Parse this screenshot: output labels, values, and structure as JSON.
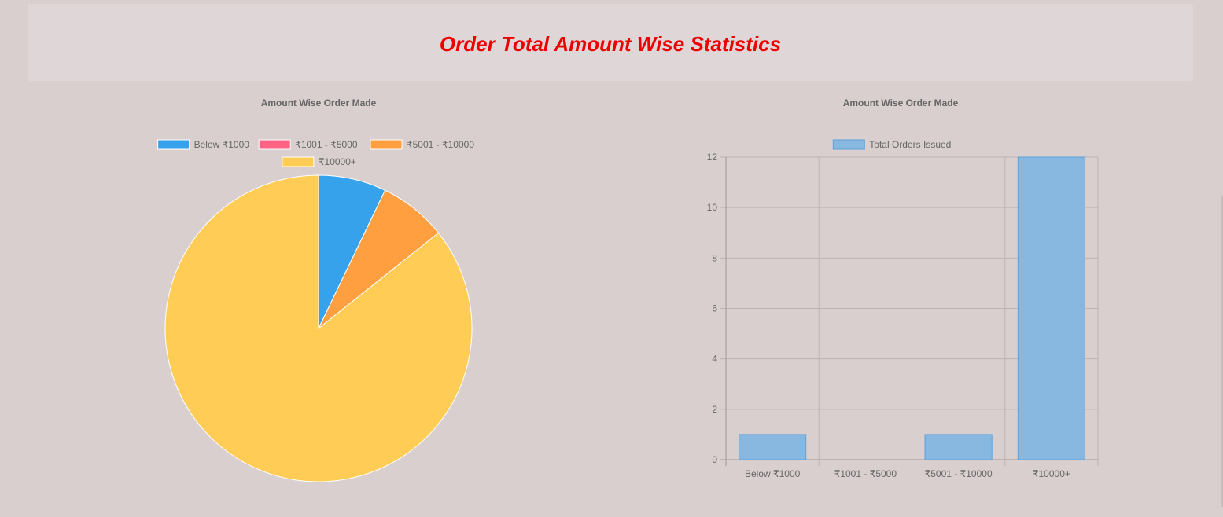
{
  "page_title": "Order Total Amount Wise Statistics",
  "colors": {
    "page_bg": "#dacfcf",
    "header_bg": "#dfd6d7",
    "title": "#ee0000",
    "slice_blue": "#36a2eb",
    "slice_pink": "#ff6384",
    "slice_orange": "#ff9f40",
    "slice_yellow": "#ffcd56",
    "bar_fill": "#88b8df",
    "bar_border": "#5ba2dc"
  },
  "chart_data": [
    {
      "type": "pie",
      "title": "Amount Wise Order Made",
      "categories": [
        "Below ₹1000",
        "₹1001 - ₹5000",
        "₹5001 - ₹10000",
        "₹10000+"
      ],
      "values": [
        1,
        0,
        1,
        12
      ],
      "colors": [
        "#36a2eb",
        "#ff6384",
        "#ff9f40",
        "#ffcd56"
      ],
      "legend": "top"
    },
    {
      "type": "bar",
      "title": "Amount Wise Order Made",
      "categories": [
        "Below ₹1000",
        "₹1001 - ₹5000",
        "₹5001 - ₹10000",
        "₹10000+"
      ],
      "series": [
        {
          "name": "Total Orders Issued",
          "values": [
            1,
            0,
            1,
            12
          ]
        }
      ],
      "ylim": [
        0,
        12
      ],
      "yticks": [
        0,
        2,
        4,
        6,
        8,
        10,
        12
      ],
      "grid": true,
      "legend": "top"
    }
  ]
}
